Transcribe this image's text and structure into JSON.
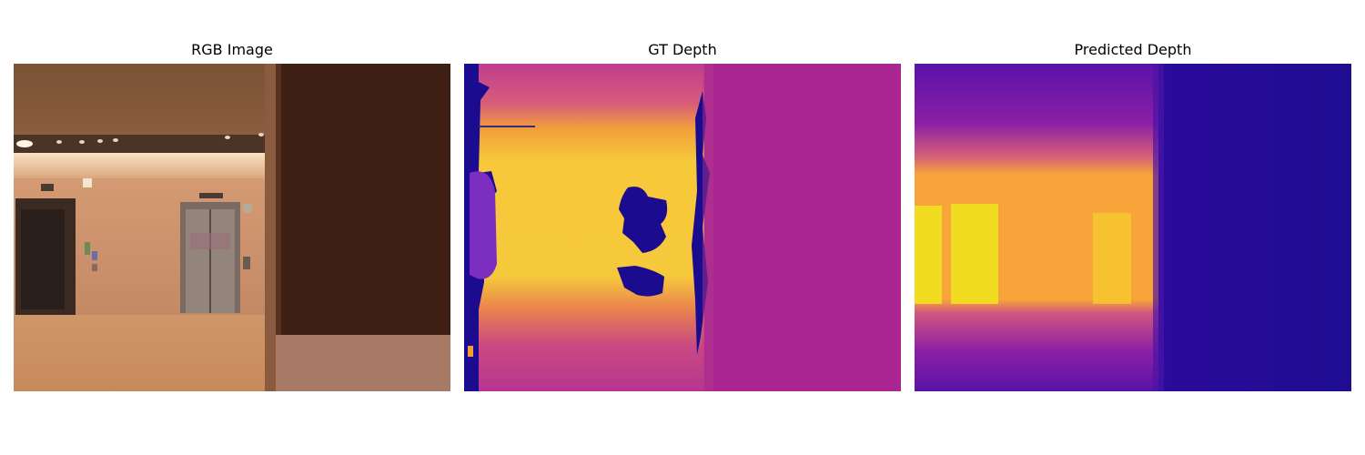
{
  "figure": {
    "panels": [
      {
        "title": "RGB Image",
        "kind": "rgb-photo"
      },
      {
        "title": "GT Depth",
        "kind": "depth-map",
        "colormap": "plasma"
      },
      {
        "title": "Predicted Depth",
        "kind": "depth-map",
        "colormap": "plasma"
      }
    ]
  },
  "colors": {
    "plasma_dark": "#1a0b8f",
    "plasma_purple": "#9b22a6",
    "plasma_magenta": "#c23b92",
    "plasma_orange": "#f39c3a",
    "plasma_yellow": "#f4e81f"
  }
}
